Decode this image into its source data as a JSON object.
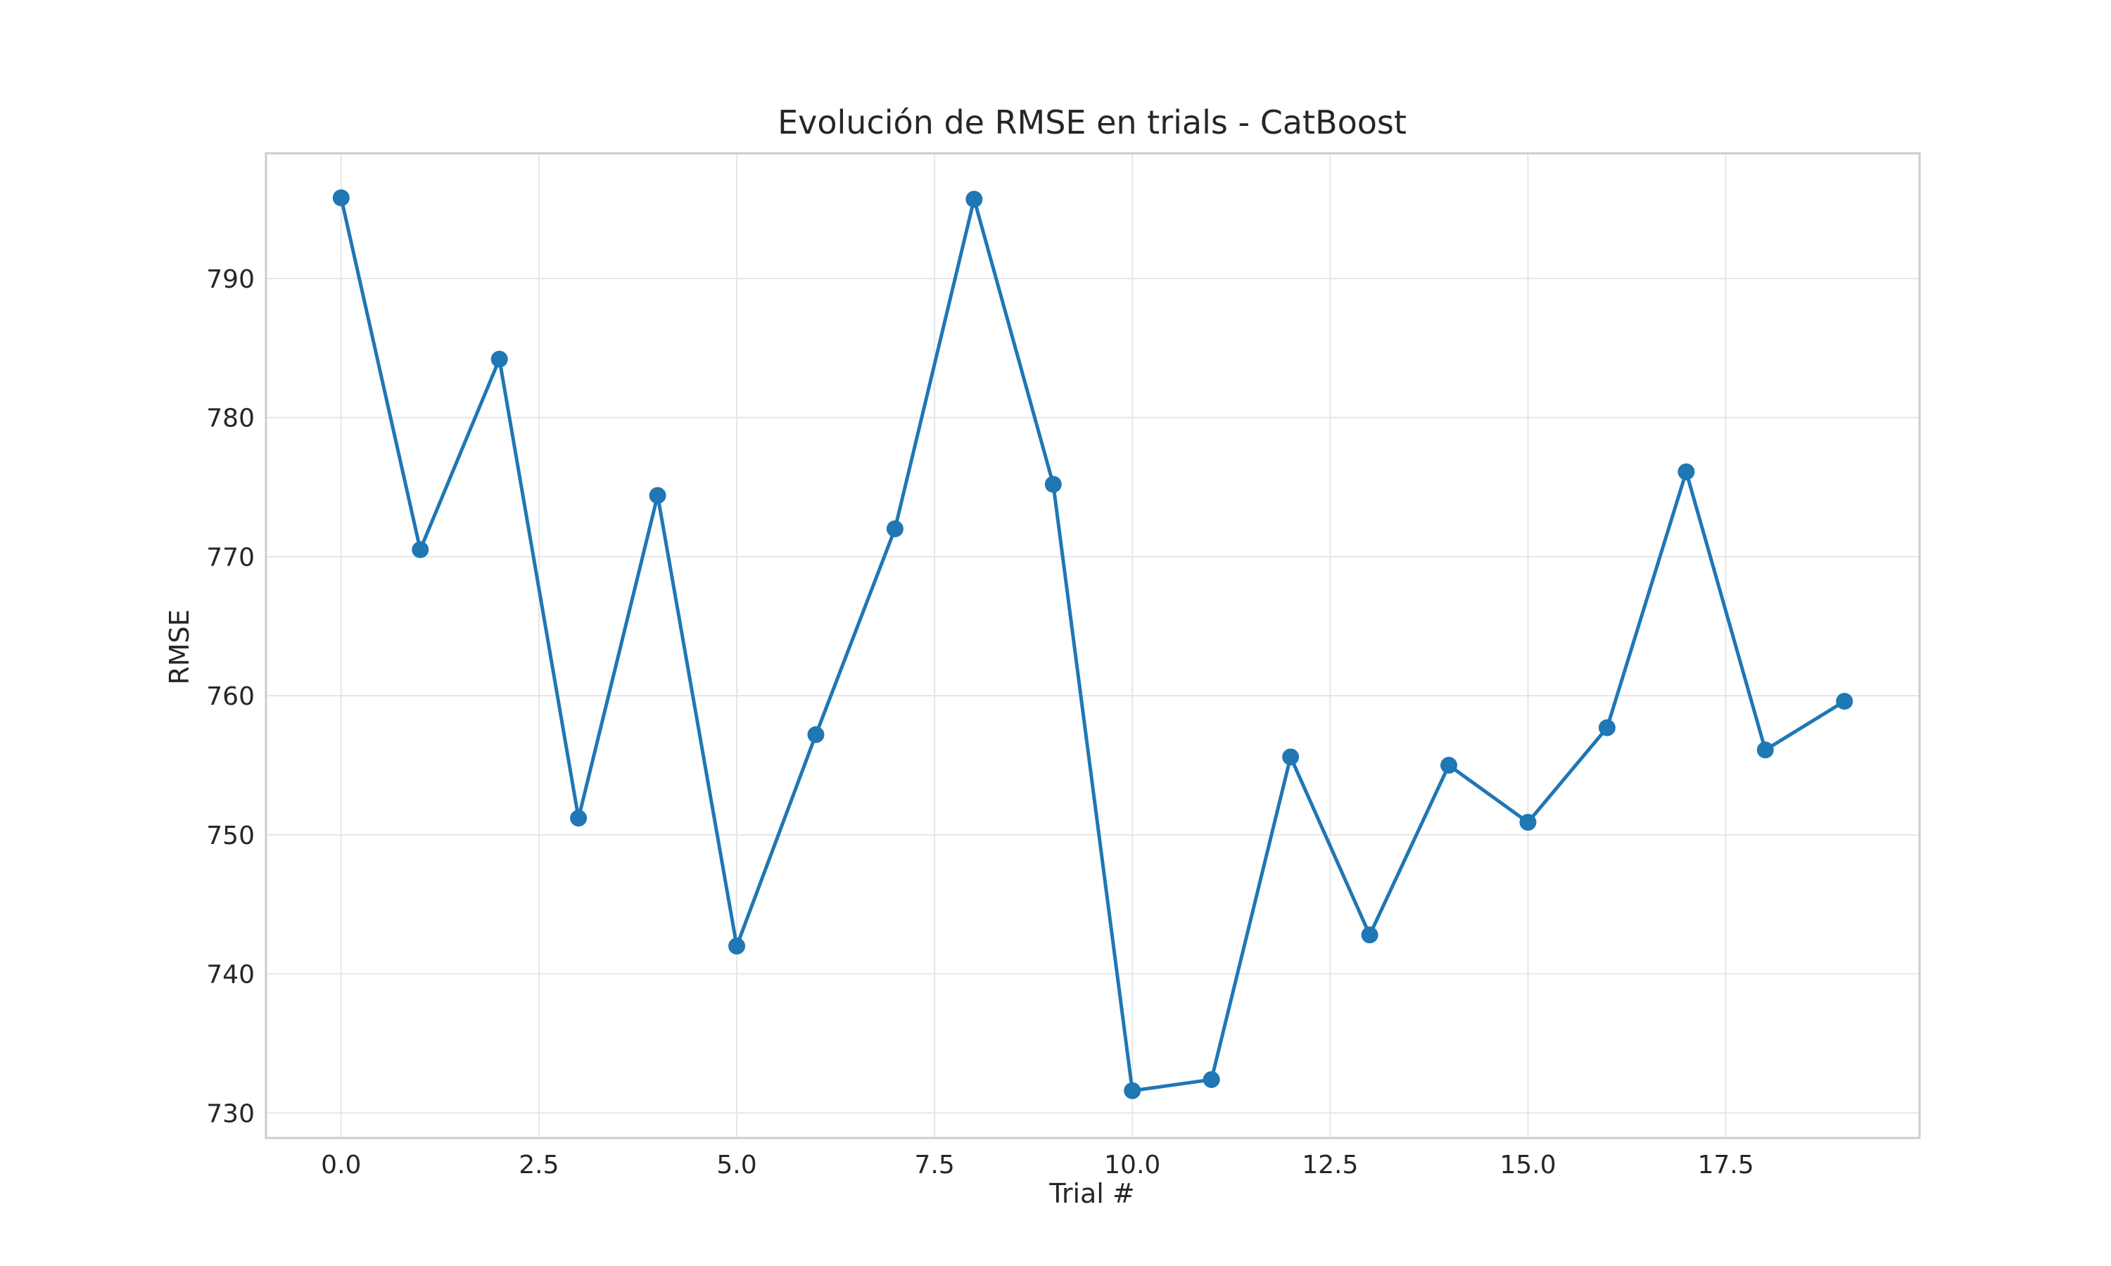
{
  "chart_data": {
    "type": "line",
    "title": "Evolución de RMSE en trials - CatBoost",
    "xlabel": "Trial #",
    "ylabel": "RMSE",
    "xlim": [
      -0.95,
      19.95
    ],
    "ylim": [
      728.2,
      799.0
    ],
    "xticks": [
      0.0,
      2.5,
      5.0,
      7.5,
      10.0,
      12.5,
      15.0,
      17.5
    ],
    "xtick_labels": [
      "0.0",
      "2.5",
      "5.0",
      "7.5",
      "10.0",
      "12.5",
      "15.0",
      "17.5"
    ],
    "yticks": [
      730,
      740,
      750,
      760,
      770,
      780,
      790
    ],
    "ytick_labels": [
      "730",
      "740",
      "750",
      "760",
      "770",
      "780",
      "790"
    ],
    "grid": true,
    "series": [
      {
        "color": "#1f77b4",
        "marker": "circle",
        "x": [
          0,
          1,
          2,
          3,
          4,
          5,
          6,
          7,
          8,
          9,
          10,
          11,
          12,
          13,
          14,
          15,
          16,
          17,
          18,
          19
        ],
        "y": [
          795.8,
          770.5,
          784.2,
          751.2,
          774.4,
          742.0,
          757.2,
          772.0,
          795.7,
          775.2,
          731.6,
          732.4,
          755.6,
          742.8,
          755.0,
          750.9,
          757.7,
          776.1,
          756.1,
          759.6
        ]
      }
    ]
  }
}
